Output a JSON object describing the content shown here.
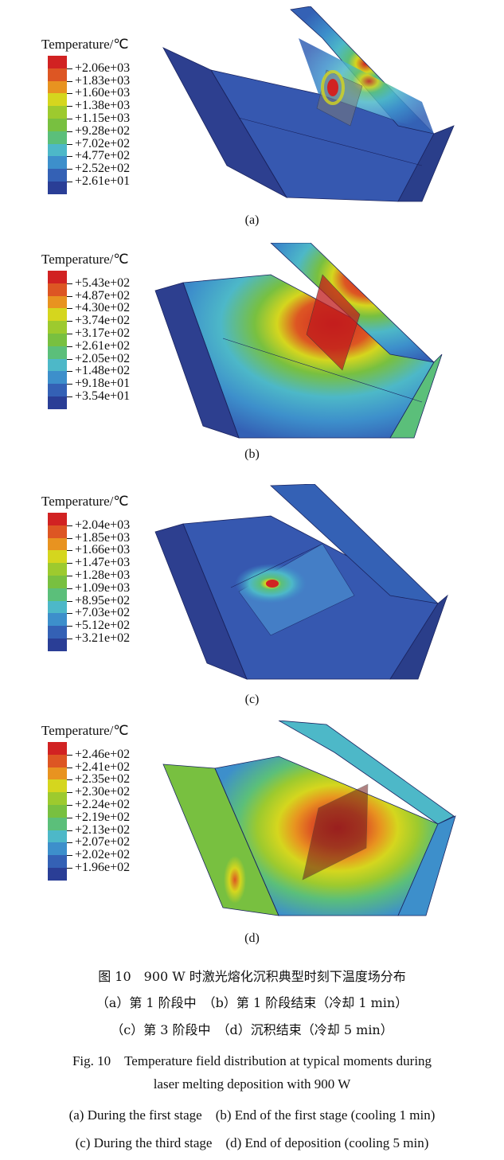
{
  "palette": [
    "#2a3e96",
    "#3461b5",
    "#3d8fcb",
    "#4db8c8",
    "#5bbf7a",
    "#78c040",
    "#9dca2e",
    "#d5d61e",
    "#e89320",
    "#dd5623",
    "#d12222"
  ],
  "panels": [
    {
      "id": "a",
      "legend_title": "Temperature/℃",
      "legend_values": [
        "+2.06e+03",
        "+1.83e+03",
        "+1.60e+03",
        "+1.38e+03",
        "+1.15e+03",
        "+9.28e+02",
        "+7.02e+02",
        "+4.77e+02",
        "+2.52e+02",
        "+2.61e+01"
      ],
      "label": "(a)"
    },
    {
      "id": "b",
      "legend_title": "Temperature/℃",
      "legend_values": [
        "+5.43e+02",
        "+4.87e+02",
        "+4.30e+02",
        "+3.74e+02",
        "+3.17e+02",
        "+2.61e+02",
        "+2.05e+02",
        "+1.48e+02",
        "+9.18e+01",
        "+3.54e+01"
      ],
      "label": "(b)"
    },
    {
      "id": "c",
      "legend_title": "Temperature/℃",
      "legend_values": [
        "+2.04e+03",
        "+1.85e+03",
        "+1.66e+03",
        "+1.47e+03",
        "+1.28e+03",
        "+1.09e+03",
        "+8.95e+02",
        "+7.03e+02",
        "+5.12e+02",
        "+3.21e+02"
      ],
      "label": "(c)"
    },
    {
      "id": "d",
      "legend_title": "Temperature/℃",
      "legend_values": [
        "+2.46e+02",
        "+2.41e+02",
        "+2.35e+02",
        "+2.30e+02",
        "+2.24e+02",
        "+2.19e+02",
        "+2.13e+02",
        "+2.07e+02",
        "+2.02e+02",
        "+1.96e+02"
      ],
      "label": "(d)"
    }
  ],
  "caption": {
    "cn_title": "图 10　900 W 时激光熔化沉积典型时刻下温度场分布",
    "cn_sub_1": "（a）第 1 阶段中　（b）第 1 阶段结束（冷却 1 min）",
    "cn_sub_2": "（c）第 3 阶段中　（d）沉积结束（冷却 5 min）",
    "en_title_1": "Fig. 10　Temperature field distribution at typical moments during",
    "en_title_2": "laser melting deposition with 900 W",
    "en_sub_1": "(a) During the first stage　(b) End of the first stage (cooling 1 min)",
    "en_sub_2": "(c) During the third stage　(d) End of deposition (cooling 5 min)"
  }
}
